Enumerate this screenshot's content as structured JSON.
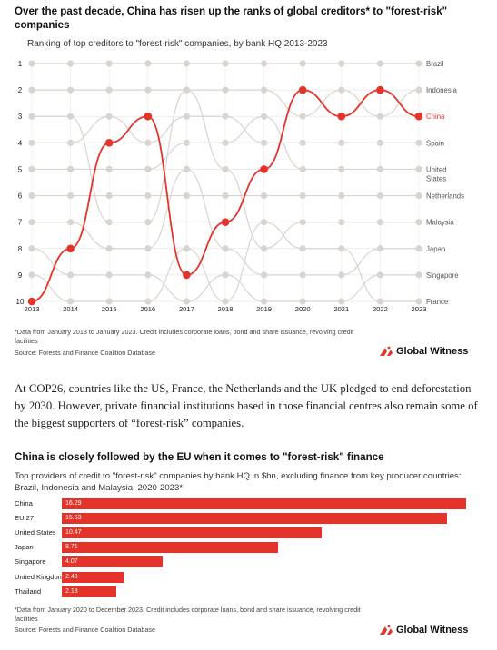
{
  "section1": {
    "title": "Over the past decade, China has risen up the ranks of global creditors* to \"forest-risk\" companies",
    "subtitle": "Ranking of top creditors to \"forest-risk\" companies, by bank HQ 2013-2023",
    "note": "*Data from January 2013 to January 2023. Credit includes corporate loans, bond and share issuance, revolving credit facilities",
    "source": "Source: Forests and Finance Coalition Database",
    "brand": "Global Witness"
  },
  "paragraph": "At COP26, countries like the US, France, the Netherlands and the UK pledged to end deforestation by 2030. However, private financial institutions based in those financial centres also remain some of the biggest supporters of “forest-risk” companies.",
  "section2": {
    "title": "China is closely followed by the EU when it comes to \"forest-risk\" finance",
    "subtitle": "Top providers of credit to \"forest-risk\" companies by bank HQ in $bn, excluding finance from key producer countries: Brazil, Indonesia and Malaysia, 2020-2023*",
    "note": "*Data from January 2020 to December 2023. Credit includes corporate loans, bond and share issuance, revolving credit facilities",
    "source": "Source: Forests and Finance Coalition Database",
    "brand": "Global Witness"
  },
  "colors": {
    "highlight": "#e6332a",
    "muted": "#d9d4cf",
    "text": "#1a1a1a"
  },
  "chart_data": [
    {
      "type": "line",
      "subtype": "bump",
      "title": "Over the past decade, China has risen up the ranks of global creditors* to \"forest-risk\" companies",
      "subtitle": "Ranking of top creditors to \"forest-risk\" companies, by bank HQ 2013-2023",
      "x": [
        2013,
        2014,
        2015,
        2016,
        2017,
        2018,
        2019,
        2020,
        2021,
        2022,
        2023
      ],
      "y_ticks": [
        "1",
        "2",
        "3",
        "4",
        "5",
        "6",
        "7",
        "8",
        "9",
        "10"
      ],
      "ylim": [
        1,
        10
      ],
      "y_inverted": true,
      "highlight_series": "China",
      "series": [
        {
          "name": "Brazil",
          "values": [
            1,
            1,
            1,
            1,
            1,
            1,
            1,
            1,
            1,
            1,
            1
          ]
        },
        {
          "name": "Indonesia",
          "values": [
            2,
            2,
            2,
            2,
            2,
            2,
            2,
            3,
            2,
            3,
            2
          ]
        },
        {
          "name": "China",
          "values": [
            10,
            8,
            4,
            3,
            9,
            7,
            5,
            2,
            3,
            2,
            3
          ]
        },
        {
          "name": "Spain",
          "values": [
            4,
            4,
            3,
            4,
            3,
            3,
            4,
            4,
            4,
            4,
            4
          ]
        },
        {
          "name": "United States",
          "values": [
            5,
            5,
            5,
            5,
            4,
            4,
            3,
            5,
            5,
            5,
            5
          ]
        },
        {
          "name": "Netherlands",
          "values": [
            6,
            6,
            6,
            6,
            6,
            6,
            6,
            6,
            6,
            6,
            6
          ]
        },
        {
          "name": "Malaysia",
          "values": [
            3,
            3,
            7,
            7,
            2,
            5,
            8,
            7,
            7,
            7,
            7
          ]
        },
        {
          "name": "Japan",
          "values": [
            7,
            7,
            8,
            8,
            5,
            8,
            9,
            9,
            9,
            8,
            8
          ]
        },
        {
          "name": "Singapore",
          "values": [
            8,
            9,
            9,
            9,
            10,
            9,
            10,
            10,
            10,
            9,
            9
          ]
        },
        {
          "name": "France",
          "values": [
            9,
            10,
            10,
            10,
            8,
            10,
            7,
            8,
            8,
            10,
            10
          ]
        }
      ]
    },
    {
      "type": "bar",
      "orientation": "horizontal",
      "title": "China is closely followed by the EU when it comes to \"forest-risk\" finance",
      "subtitle": "Top providers of credit to \"forest-risk\" companies by bank HQ in $bn, excluding finance from key producer countries: Brazil, Indonesia and Malaysia, 2020-2023*",
      "categories": [
        "China",
        "EU 27",
        "United States",
        "Japan",
        "Singapore",
        "United Kingdom",
        "Thailand"
      ],
      "values": [
        16.29,
        15.53,
        10.47,
        8.71,
        4.07,
        2.49,
        2.18
      ],
      "labels": [
        "16.29",
        "15.53",
        "10.47",
        "8.71",
        "4.07",
        "2.49",
        "2.18"
      ],
      "xlim": [
        0,
        16.29
      ]
    }
  ]
}
